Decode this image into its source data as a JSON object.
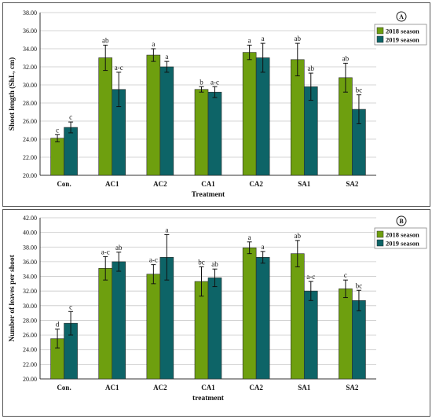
{
  "chart_data": [
    {
      "type": "bar",
      "panel_label": "A",
      "categories": [
        "Con.",
        "AC1",
        "AC2",
        "CA1",
        "CA2",
        "SA1",
        "SA2"
      ],
      "xlabel": "Treatment",
      "ylabel": "Shoot length (ShL, cm)",
      "ylim": [
        20,
        38
      ],
      "yticks": [
        "20.00",
        "22.00",
        "24.00",
        "26.00",
        "28.00",
        "30.00",
        "32.00",
        "34.00",
        "36.00",
        "38.00"
      ],
      "grid": true,
      "legend_position": "top-right",
      "series": [
        {
          "name": "2018 season",
          "color": "#6e9f0f",
          "values": [
            24.1,
            33.0,
            33.3,
            29.5,
            33.6,
            32.8,
            30.8
          ],
          "errors": [
            0.4,
            1.4,
            0.7,
            0.3,
            0.8,
            1.8,
            1.6
          ],
          "letters": [
            "c",
            "ab",
            "a",
            "b",
            "a",
            "ab",
            "ab"
          ]
        },
        {
          "name": "2019 season",
          "color": "#0d6467",
          "values": [
            25.3,
            29.5,
            32.0,
            29.2,
            33.0,
            29.8,
            27.3
          ],
          "errors": [
            0.6,
            1.9,
            0.6,
            0.6,
            1.6,
            1.5,
            1.6
          ],
          "letters": [
            "c",
            "a-c",
            "a",
            "a-c",
            "a",
            "ab",
            "bc"
          ]
        }
      ]
    },
    {
      "type": "bar",
      "panel_label": "B",
      "categories": [
        "Con.",
        "AC1",
        "AC2",
        "CA1",
        "CA2",
        "SA1",
        "SA2"
      ],
      "xlabel": "treatment",
      "ylabel": "Number of leaves per shoot",
      "ylim": [
        20,
        42
      ],
      "yticks": [
        "20.00",
        "22.00",
        "24.00",
        "26.00",
        "28.00",
        "30.00",
        "32.00",
        "34.00",
        "36.00",
        "38.00",
        "40.00",
        "42.00"
      ],
      "grid": true,
      "legend_position": "top-right",
      "series": [
        {
          "name": "2018 season",
          "color": "#6e9f0f",
          "values": [
            25.5,
            35.1,
            34.3,
            33.3,
            37.9,
            37.1,
            32.3
          ],
          "errors": [
            1.3,
            1.6,
            1.3,
            2.0,
            0.8,
            1.8,
            1.2
          ],
          "letters": [
            "d",
            "a-c",
            "a-c",
            "bc",
            "a",
            "ab",
            "c"
          ]
        },
        {
          "name": "2019 season",
          "color": "#0d6467",
          "values": [
            27.6,
            36.0,
            36.6,
            33.8,
            36.6,
            32.0,
            30.7
          ],
          "errors": [
            1.6,
            1.3,
            3.1,
            1.2,
            0.8,
            1.3,
            1.4
          ],
          "letters": [
            "c",
            "ab",
            "a",
            "ab",
            "a",
            "a-c",
            "bc"
          ]
        }
      ]
    }
  ]
}
